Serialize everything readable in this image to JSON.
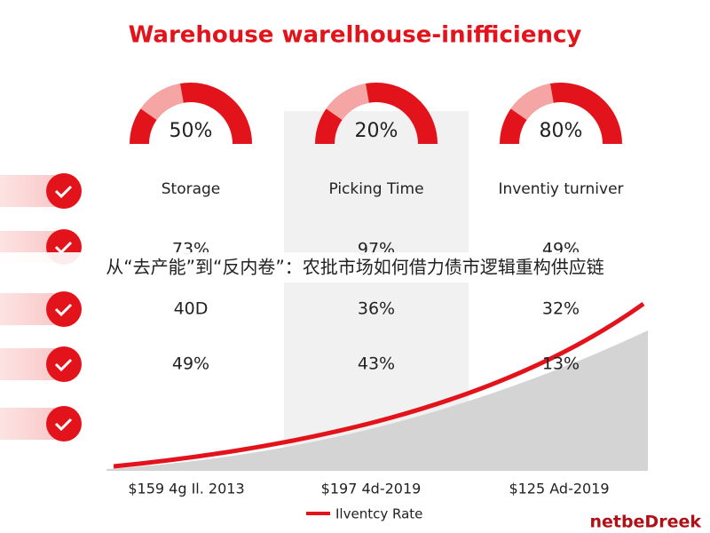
{
  "title": "Warehouse warelhouse-inifficiency",
  "metrics": [
    {
      "value": "50%",
      "label": "Storage"
    },
    {
      "value": "20%",
      "label": "Picking Time"
    },
    {
      "value": "80%",
      "label": "Inventiy turniver"
    }
  ],
  "rows": [
    [
      "73%",
      "97%",
      "49%"
    ],
    [
      "40D",
      "36%",
      "32%"
    ],
    [
      "49%",
      "43%",
      "13%"
    ]
  ],
  "banner": "从“去产能”到“反内卷”：农批市场如何借力债市逻辑重构供应链",
  "x_labels": [
    "$159 4g Il. 2013",
    "$197 4d-2019",
    "$125 Ad-2019"
  ],
  "legend": "Ilventcy Rate",
  "brand": "netbeDreek"
}
